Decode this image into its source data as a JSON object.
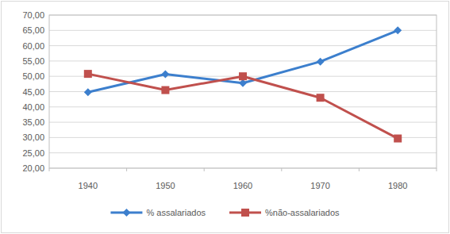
{
  "chart_data": {
    "type": "line",
    "categories": [
      "1940",
      "1950",
      "1960",
      "1970",
      "1980"
    ],
    "series": [
      {
        "name": "% assalariados",
        "color": "#3c7fcd",
        "marker": "diamond",
        "values": [
          44.8,
          50.7,
          47.8,
          54.8,
          65.0
        ]
      },
      {
        "name": "%não-assalariados",
        "color": "#c0504d",
        "marker": "square",
        "values": [
          50.8,
          45.5,
          50.0,
          43.0,
          29.7
        ]
      }
    ],
    "ylim": [
      20,
      70
    ],
    "yticks": [
      {
        "value": 20,
        "label": "20,00"
      },
      {
        "value": 25,
        "label": "25,00"
      },
      {
        "value": 30,
        "label": "30,00"
      },
      {
        "value": 35,
        "label": "35,00"
      },
      {
        "value": 40,
        "label": "40,00"
      },
      {
        "value": 45,
        "label": "45,00"
      },
      {
        "value": 50,
        "label": "50,00"
      },
      {
        "value": 55,
        "label": "55,00"
      },
      {
        "value": 60,
        "label": "60,00"
      },
      {
        "value": 65,
        "label": "65,00"
      },
      {
        "value": 70,
        "label": "70,00"
      }
    ],
    "grid": true,
    "legend": "bottom"
  }
}
